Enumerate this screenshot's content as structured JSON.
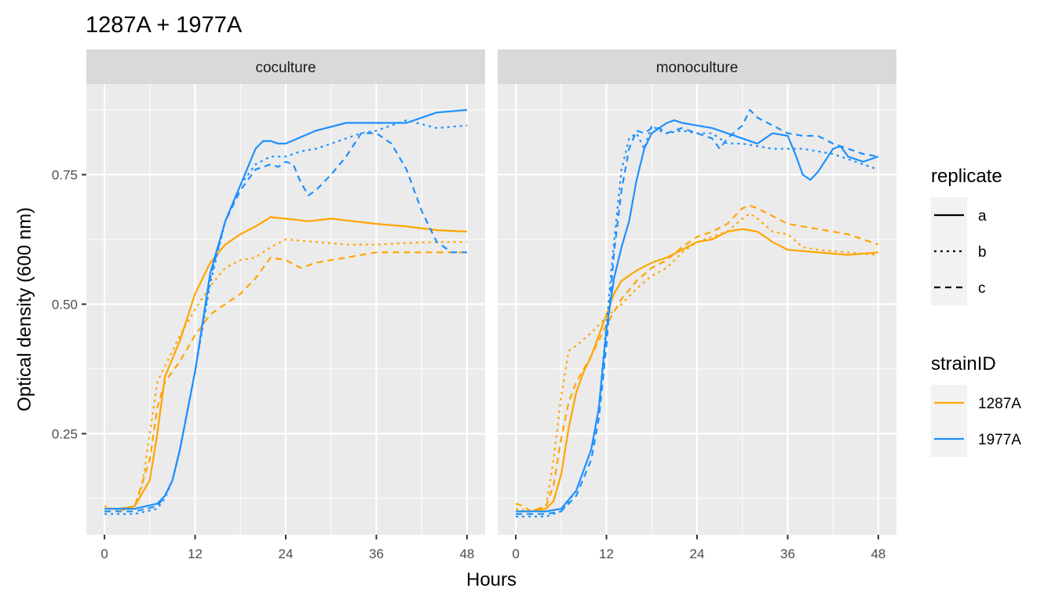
{
  "title": "1287A + 1977A",
  "xlabel": "Hours",
  "ylabel": "Optical density (600 nm)",
  "colors": {
    "1287A": "#FFA500",
    "1977A": "#1E90FF"
  },
  "legend_replicate": {
    "title": "replicate",
    "items": [
      {
        "label": "a",
        "dash": "solid"
      },
      {
        "label": "b",
        "dash": "dotted"
      },
      {
        "label": "c",
        "dash": "dashed"
      }
    ]
  },
  "legend_strain": {
    "title": "strainID",
    "items": [
      {
        "label": "1287A",
        "color": "#FFA500"
      },
      {
        "label": "1977A",
        "color": "#1E90FF"
      }
    ]
  },
  "chart_data": {
    "type": "line",
    "facets": [
      "coculture",
      "monoculture"
    ],
    "x_ticks": [
      0,
      12,
      24,
      36,
      48
    ],
    "y_ticks": [
      0.25,
      0.5,
      0.75
    ],
    "y_tick_labels": [
      "0.25",
      "0.50",
      "0.75"
    ],
    "xlim": [
      -2.4,
      50.4
    ],
    "ylim": [
      0.055,
      0.925
    ],
    "grid": true,
    "legend_position": "right",
    "series": [
      {
        "facet": "coculture",
        "strain": "1287A",
        "replicate": "a",
        "x": [
          0,
          2,
          4,
          6,
          7,
          8,
          10,
          12,
          14,
          16,
          18,
          20,
          22,
          24,
          27,
          30,
          33,
          36,
          40,
          44,
          48
        ],
        "y": [
          0.105,
          0.105,
          0.11,
          0.16,
          0.25,
          0.36,
          0.43,
          0.52,
          0.58,
          0.615,
          0.635,
          0.65,
          0.668,
          0.665,
          0.66,
          0.665,
          0.66,
          0.655,
          0.65,
          0.643,
          0.64
        ]
      },
      {
        "facet": "coculture",
        "strain": "1287A",
        "replicate": "b",
        "x": [
          0,
          2,
          4,
          5,
          6,
          7,
          8,
          10,
          12,
          14,
          16,
          18,
          20,
          22,
          24,
          28,
          32,
          36,
          40,
          44,
          48
        ],
        "y": [
          0.11,
          0.1,
          0.11,
          0.15,
          0.25,
          0.35,
          0.38,
          0.44,
          0.49,
          0.535,
          0.57,
          0.585,
          0.59,
          0.61,
          0.625,
          0.62,
          0.615,
          0.615,
          0.618,
          0.62,
          0.62
        ]
      },
      {
        "facet": "coculture",
        "strain": "1287A",
        "replicate": "c",
        "x": [
          0,
          2,
          4,
          6,
          7,
          8,
          10,
          12,
          14,
          16,
          18,
          20,
          22,
          24,
          26,
          28,
          32,
          36,
          40,
          44,
          48
        ],
        "y": [
          0.1,
          0.1,
          0.11,
          0.2,
          0.3,
          0.35,
          0.39,
          0.44,
          0.48,
          0.5,
          0.52,
          0.55,
          0.59,
          0.585,
          0.57,
          0.58,
          0.59,
          0.6,
          0.6,
          0.6,
          0.6
        ]
      },
      {
        "facet": "coculture",
        "strain": "1977A",
        "replicate": "a",
        "x": [
          0,
          4,
          7,
          8,
          9,
          10,
          12,
          14,
          16,
          18,
          20,
          21,
          22,
          23,
          24,
          28,
          32,
          36,
          40,
          44,
          48
        ],
        "y": [
          0.105,
          0.105,
          0.115,
          0.13,
          0.16,
          0.22,
          0.37,
          0.56,
          0.66,
          0.73,
          0.8,
          0.815,
          0.815,
          0.81,
          0.81,
          0.835,
          0.85,
          0.85,
          0.85,
          0.87,
          0.875
        ]
      },
      {
        "facet": "coculture",
        "strain": "1977A",
        "replicate": "b",
        "x": [
          0,
          4,
          7,
          8,
          9,
          10,
          12,
          14,
          16,
          18,
          20,
          22,
          24,
          26,
          28,
          30,
          32,
          34,
          36,
          40,
          44,
          48
        ],
        "y": [
          0.095,
          0.095,
          0.105,
          0.125,
          0.16,
          0.22,
          0.37,
          0.54,
          0.66,
          0.73,
          0.77,
          0.785,
          0.785,
          0.795,
          0.8,
          0.81,
          0.82,
          0.83,
          0.835,
          0.855,
          0.84,
          0.845
        ]
      },
      {
        "facet": "coculture",
        "strain": "1977A",
        "replicate": "c",
        "x": [
          0,
          4,
          7,
          8,
          9,
          10,
          12,
          14,
          16,
          18,
          20,
          22,
          23,
          24,
          25,
          26,
          27,
          28,
          30,
          32,
          34,
          36,
          38,
          40,
          42,
          44,
          46,
          48
        ],
        "y": [
          0.1,
          0.1,
          0.11,
          0.13,
          0.16,
          0.22,
          0.37,
          0.55,
          0.66,
          0.72,
          0.76,
          0.77,
          0.765,
          0.775,
          0.77,
          0.735,
          0.71,
          0.72,
          0.75,
          0.785,
          0.83,
          0.83,
          0.81,
          0.76,
          0.68,
          0.62,
          0.6,
          0.6
        ]
      },
      {
        "facet": "monoculture",
        "strain": "1287A",
        "replicate": "a",
        "x": [
          0,
          2,
          4,
          5,
          6,
          7,
          8,
          9,
          10,
          11,
          12,
          13,
          14,
          16,
          18,
          20,
          22,
          24,
          26,
          28,
          30,
          32,
          34,
          36,
          40,
          44,
          48
        ],
        "y": [
          0.1,
          0.1,
          0.105,
          0.12,
          0.17,
          0.26,
          0.33,
          0.37,
          0.4,
          0.44,
          0.48,
          0.52,
          0.545,
          0.565,
          0.58,
          0.59,
          0.605,
          0.62,
          0.625,
          0.64,
          0.645,
          0.64,
          0.62,
          0.605,
          0.6,
          0.595,
          0.6
        ]
      },
      {
        "facet": "monoculture",
        "strain": "1287A",
        "replicate": "b",
        "x": [
          0,
          2,
          4,
          5,
          6,
          7,
          8,
          10,
          12,
          14,
          16,
          18,
          20,
          22,
          24,
          26,
          28,
          30,
          31,
          32,
          34,
          36,
          38,
          40,
          44,
          48
        ],
        "y": [
          0.105,
          0.1,
          0.11,
          0.2,
          0.32,
          0.41,
          0.42,
          0.445,
          0.475,
          0.5,
          0.53,
          0.555,
          0.57,
          0.6,
          0.62,
          0.63,
          0.64,
          0.665,
          0.675,
          0.665,
          0.64,
          0.635,
          0.61,
          0.605,
          0.6,
          0.595
        ]
      },
      {
        "facet": "monoculture",
        "strain": "1287A",
        "replicate": "c",
        "x": [
          0,
          1,
          2,
          4,
          5,
          6,
          7,
          8,
          10,
          12,
          14,
          16,
          18,
          20,
          22,
          24,
          26,
          28,
          30,
          31,
          32,
          34,
          36,
          40,
          44,
          48
        ],
        "y": [
          0.115,
          0.11,
          0.1,
          0.11,
          0.15,
          0.24,
          0.31,
          0.35,
          0.4,
          0.46,
          0.51,
          0.545,
          0.57,
          0.585,
          0.61,
          0.63,
          0.64,
          0.655,
          0.685,
          0.69,
          0.685,
          0.67,
          0.655,
          0.645,
          0.635,
          0.615
        ]
      },
      {
        "facet": "monoculture",
        "strain": "1977A",
        "replicate": "a",
        "x": [
          0,
          4,
          6,
          8,
          10,
          11,
          12,
          13,
          14,
          15,
          16,
          17,
          18,
          20,
          21,
          22,
          24,
          26,
          28,
          30,
          32,
          34,
          36,
          37,
          38,
          39,
          40,
          42,
          43,
          44,
          46,
          48
        ],
        "y": [
          0.1,
          0.1,
          0.105,
          0.14,
          0.22,
          0.3,
          0.45,
          0.55,
          0.61,
          0.66,
          0.74,
          0.8,
          0.83,
          0.85,
          0.855,
          0.85,
          0.845,
          0.84,
          0.83,
          0.82,
          0.81,
          0.83,
          0.825,
          0.79,
          0.75,
          0.74,
          0.755,
          0.8,
          0.805,
          0.785,
          0.775,
          0.785
        ]
      },
      {
        "facet": "monoculture",
        "strain": "1977A",
        "replicate": "b",
        "x": [
          0,
          4,
          6,
          8,
          10,
          11,
          12,
          13,
          14,
          15,
          16,
          17,
          18,
          19,
          20,
          22,
          24,
          26,
          28,
          30,
          32,
          34,
          36,
          38,
          40,
          42,
          44,
          46,
          48
        ],
        "y": [
          0.09,
          0.09,
          0.1,
          0.14,
          0.22,
          0.3,
          0.46,
          0.62,
          0.76,
          0.82,
          0.83,
          0.8,
          0.845,
          0.835,
          0.83,
          0.835,
          0.83,
          0.83,
          0.81,
          0.81,
          0.805,
          0.8,
          0.8,
          0.8,
          0.795,
          0.79,
          0.78,
          0.77,
          0.76
        ]
      },
      {
        "facet": "monoculture",
        "strain": "1977A",
        "replicate": "c",
        "x": [
          0,
          4,
          6,
          8,
          10,
          11,
          12,
          13,
          14,
          15,
          16,
          17,
          18,
          19,
          20,
          22,
          24,
          26,
          27,
          28,
          30,
          31,
          32,
          34,
          36,
          38,
          40,
          42,
          44,
          46,
          48
        ],
        "y": [
          0.095,
          0.095,
          0.1,
          0.13,
          0.2,
          0.28,
          0.42,
          0.6,
          0.72,
          0.8,
          0.835,
          0.83,
          0.84,
          0.84,
          0.83,
          0.84,
          0.83,
          0.82,
          0.8,
          0.82,
          0.845,
          0.875,
          0.86,
          0.845,
          0.83,
          0.825,
          0.825,
          0.81,
          0.8,
          0.79,
          0.785
        ]
      }
    ]
  }
}
